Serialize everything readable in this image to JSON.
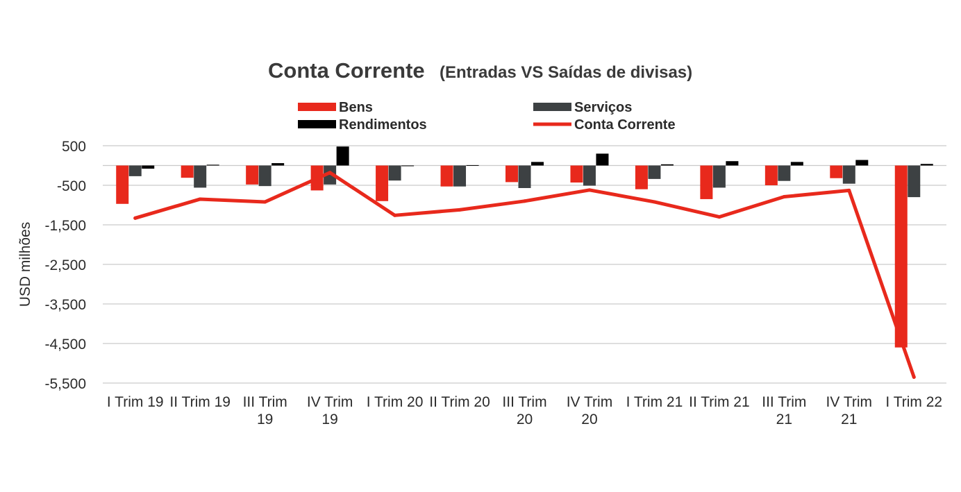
{
  "chart_data": {
    "type": "bar",
    "title": "Conta Corrente",
    "subtitle": "(Entradas VS Saídas de divisas)",
    "xlabel": "",
    "ylabel": "USD milhões",
    "ylim": [
      -5500,
      500
    ],
    "yticks": [
      500,
      -500,
      -1500,
      -2500,
      -3500,
      -4500,
      -5500
    ],
    "ytick_labels": [
      "500",
      "-500",
      "-1,500",
      "-2,500",
      "-3,500",
      "-4,500",
      "-5,500"
    ],
    "grid": true,
    "legend_position": "top",
    "categories": [
      [
        "I Trim 19"
      ],
      [
        "II Trim 19"
      ],
      [
        "III  Trim",
        "19"
      ],
      [
        "IV Trim",
        "19"
      ],
      [
        "I Trim 20"
      ],
      [
        "II Trim 20"
      ],
      [
        "III Trim",
        "20"
      ],
      [
        "IV Trim",
        "20"
      ],
      [
        "I Trim 21"
      ],
      [
        "II Trim 21"
      ],
      [
        "III Trim",
        "21"
      ],
      [
        "IV Trim",
        "21"
      ],
      [
        "I Trim 22"
      ]
    ],
    "series": [
      {
        "name": "Bens",
        "kind": "bar",
        "color": "#e8291c",
        "values": [
          -970,
          -310,
          -480,
          -630,
          -900,
          -530,
          -420,
          -430,
          -600,
          -850,
          -500,
          -320,
          -4600
        ]
      },
      {
        "name": "Serviços",
        "kind": "bar",
        "color": "#3d4143",
        "values": [
          -270,
          -560,
          -520,
          -480,
          -380,
          -530,
          -570,
          -510,
          -340,
          -560,
          -390,
          -460,
          -800
        ]
      },
      {
        "name": "Rendimentos",
        "kind": "bar",
        "color": "#000000",
        "values": [
          -80,
          20,
          60,
          480,
          0,
          10,
          90,
          300,
          30,
          110,
          90,
          140,
          40
        ]
      },
      {
        "name": "Conta Corrente",
        "kind": "line",
        "color": "#e8291c",
        "values": [
          -1330,
          -850,
          -920,
          -180,
          -1260,
          -1120,
          -900,
          -620,
          -920,
          -1300,
          -790,
          -630,
          -5350
        ]
      }
    ]
  }
}
